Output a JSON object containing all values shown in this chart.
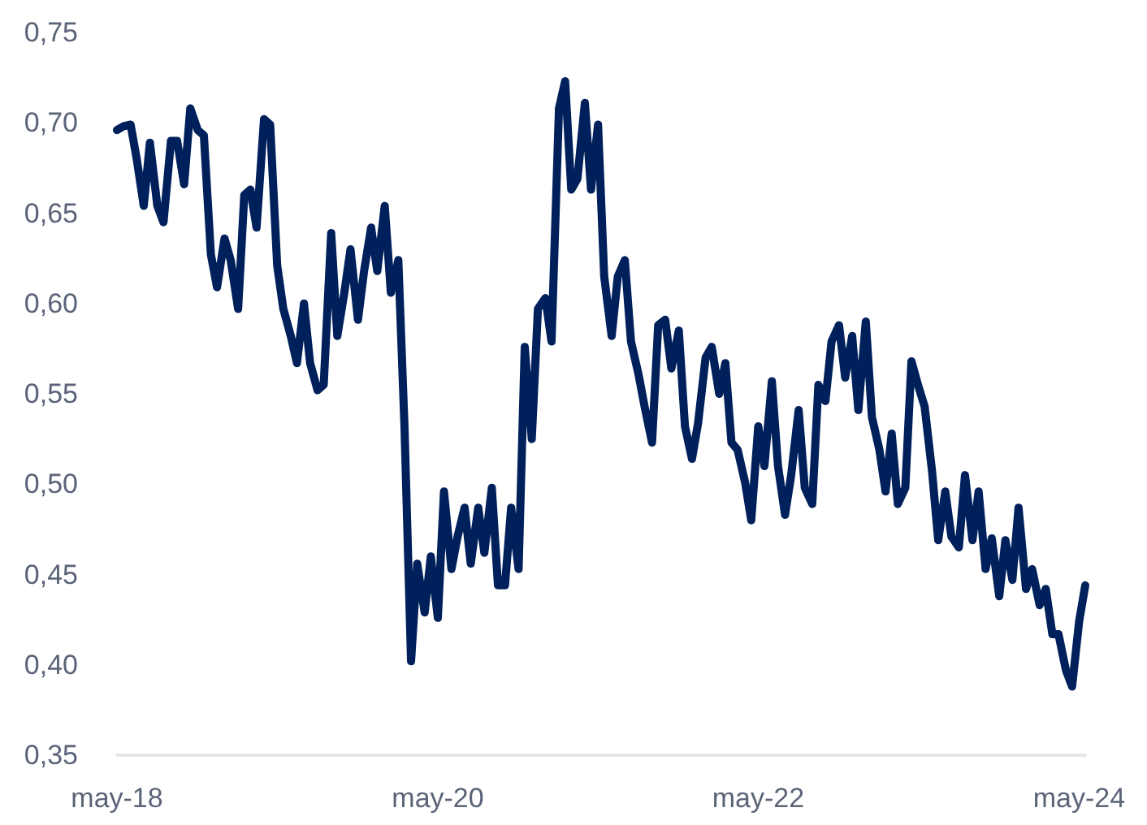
{
  "chart_data": {
    "type": "line",
    "color": "#00205b",
    "grid": false,
    "marker": "none",
    "line_style": "solid",
    "xlim": [
      "2018-05-01",
      "2024-05-15"
    ],
    "xticks": [
      {
        "value": "2018-05-01",
        "label": "may-18"
      },
      {
        "value": "2020-05-01",
        "label": "may-20"
      },
      {
        "value": "2022-05-01",
        "label": "may-22"
      },
      {
        "value": "2024-05-01",
        "label": "may-24"
      }
    ],
    "ylim": [
      0.35,
      0.75
    ],
    "yticks": [
      {
        "value": 0.35,
        "label": "0,35"
      },
      {
        "value": 0.4,
        "label": "0,40"
      },
      {
        "value": 0.45,
        "label": "0,45"
      },
      {
        "value": 0.5,
        "label": "0,50"
      },
      {
        "value": 0.55,
        "label": "0,55"
      },
      {
        "value": 0.6,
        "label": "0,60"
      },
      {
        "value": 0.65,
        "label": "0,65"
      },
      {
        "value": 0.7,
        "label": "0,70"
      },
      {
        "value": 0.75,
        "label": "0,75"
      }
    ],
    "x": [
      "2018-05-01",
      "2018-05-15",
      "2018-06-01",
      "2018-06-15",
      "2018-07-01",
      "2018-07-15",
      "2018-08-01",
      "2018-08-15",
      "2018-09-01",
      "2018-09-15",
      "2018-10-01",
      "2018-10-15",
      "2018-11-01",
      "2018-11-15",
      "2018-12-01",
      "2018-12-15",
      "2019-01-01",
      "2019-01-15",
      "2019-02-01",
      "2019-02-15",
      "2019-03-01",
      "2019-03-15",
      "2019-04-01",
      "2019-04-15",
      "2019-05-01",
      "2019-05-15",
      "2019-06-01",
      "2019-06-15",
      "2019-07-01",
      "2019-07-15",
      "2019-08-01",
      "2019-08-15",
      "2019-09-01",
      "2019-09-15",
      "2019-10-01",
      "2019-10-15",
      "2019-11-01",
      "2019-11-15",
      "2019-12-01",
      "2019-12-15",
      "2020-01-01",
      "2020-01-15",
      "2020-02-01",
      "2020-02-15",
      "2020-03-01",
      "2020-03-15",
      "2020-04-01",
      "2020-04-15",
      "2020-05-01",
      "2020-05-15",
      "2020-06-01",
      "2020-06-15",
      "2020-07-01",
      "2020-07-15",
      "2020-08-01",
      "2020-08-15",
      "2020-09-01",
      "2020-09-15",
      "2020-10-01",
      "2020-10-15",
      "2020-11-01",
      "2020-11-15",
      "2020-12-01",
      "2020-12-15",
      "2021-01-01",
      "2021-01-15",
      "2021-02-01",
      "2021-02-15",
      "2021-03-01",
      "2021-03-15",
      "2021-04-01",
      "2021-04-15",
      "2021-05-01",
      "2021-05-15",
      "2021-06-01",
      "2021-06-15",
      "2021-07-01",
      "2021-07-15",
      "2021-08-01",
      "2021-08-15",
      "2021-09-01",
      "2021-09-15",
      "2021-10-01",
      "2021-10-15",
      "2021-11-01",
      "2021-11-15",
      "2021-12-01",
      "2021-12-15",
      "2022-01-01",
      "2022-01-15",
      "2022-02-01",
      "2022-02-15",
      "2022-03-01",
      "2022-03-15",
      "2022-04-01",
      "2022-04-15",
      "2022-05-01",
      "2022-05-15",
      "2022-06-01",
      "2022-06-15",
      "2022-07-01",
      "2022-07-15",
      "2022-08-01",
      "2022-08-15",
      "2022-09-01",
      "2022-09-15",
      "2022-10-01",
      "2022-10-15",
      "2022-11-01",
      "2022-11-15",
      "2022-12-01",
      "2022-12-15",
      "2023-01-01",
      "2023-01-15",
      "2023-02-01",
      "2023-02-15",
      "2023-03-01",
      "2023-03-15",
      "2023-04-01",
      "2023-04-15",
      "2023-05-01",
      "2023-05-15",
      "2023-06-01",
      "2023-06-15",
      "2023-07-01",
      "2023-07-15",
      "2023-08-01",
      "2023-08-15",
      "2023-09-01",
      "2023-09-15",
      "2023-10-01",
      "2023-10-15",
      "2023-11-01",
      "2023-11-15",
      "2023-12-01",
      "2023-12-15",
      "2024-01-01",
      "2024-01-15",
      "2024-02-01",
      "2024-02-15",
      "2024-03-01",
      "2024-03-15",
      "2024-04-01",
      "2024-04-15",
      "2024-05-01",
      "2024-05-15"
    ],
    "values": [
      0.696,
      0.698,
      0.699,
      0.68,
      0.654,
      0.689,
      0.654,
      0.645,
      0.69,
      0.69,
      0.666,
      0.708,
      0.696,
      0.693,
      0.627,
      0.609,
      0.636,
      0.624,
      0.597,
      0.66,
      0.663,
      0.642,
      0.702,
      0.699,
      0.621,
      0.597,
      0.582,
      0.567,
      0.6,
      0.567,
      0.552,
      0.555,
      0.639,
      0.582,
      0.606,
      0.63,
      0.591,
      0.618,
      0.642,
      0.618,
      0.654,
      0.606,
      0.624,
      0.532,
      0.402,
      0.456,
      0.429,
      0.46,
      0.426,
      0.496,
      0.453,
      0.471,
      0.487,
      0.456,
      0.487,
      0.462,
      0.498,
      0.444,
      0.444,
      0.487,
      0.453,
      0.576,
      0.525,
      0.597,
      0.603,
      0.579,
      0.708,
      0.723,
      0.663,
      0.669,
      0.711,
      0.663,
      0.699,
      0.615,
      0.582,
      0.615,
      0.624,
      0.579,
      0.561,
      0.543,
      0.523,
      0.588,
      0.591,
      0.564,
      0.585,
      0.532,
      0.514,
      0.534,
      0.57,
      0.576,
      0.55,
      0.567,
      0.523,
      0.519,
      0.501,
      0.48,
      0.532,
      0.51,
      0.557,
      0.51,
      0.483,
      0.505,
      0.541,
      0.498,
      0.489,
      0.555,
      0.546,
      0.579,
      0.588,
      0.559,
      0.582,
      0.541,
      0.59,
      0.537,
      0.519,
      0.496,
      0.528,
      0.489,
      0.498,
      0.568,
      0.554,
      0.543,
      0.507,
      0.469,
      0.496,
      0.471,
      0.465,
      0.505,
      0.469,
      0.496,
      0.453,
      0.47,
      0.438,
      0.469,
      0.447,
      0.487,
      0.442,
      0.453,
      0.433,
      0.442,
      0.417,
      0.417,
      0.397,
      0.388,
      0.424,
      0.444
    ]
  }
}
